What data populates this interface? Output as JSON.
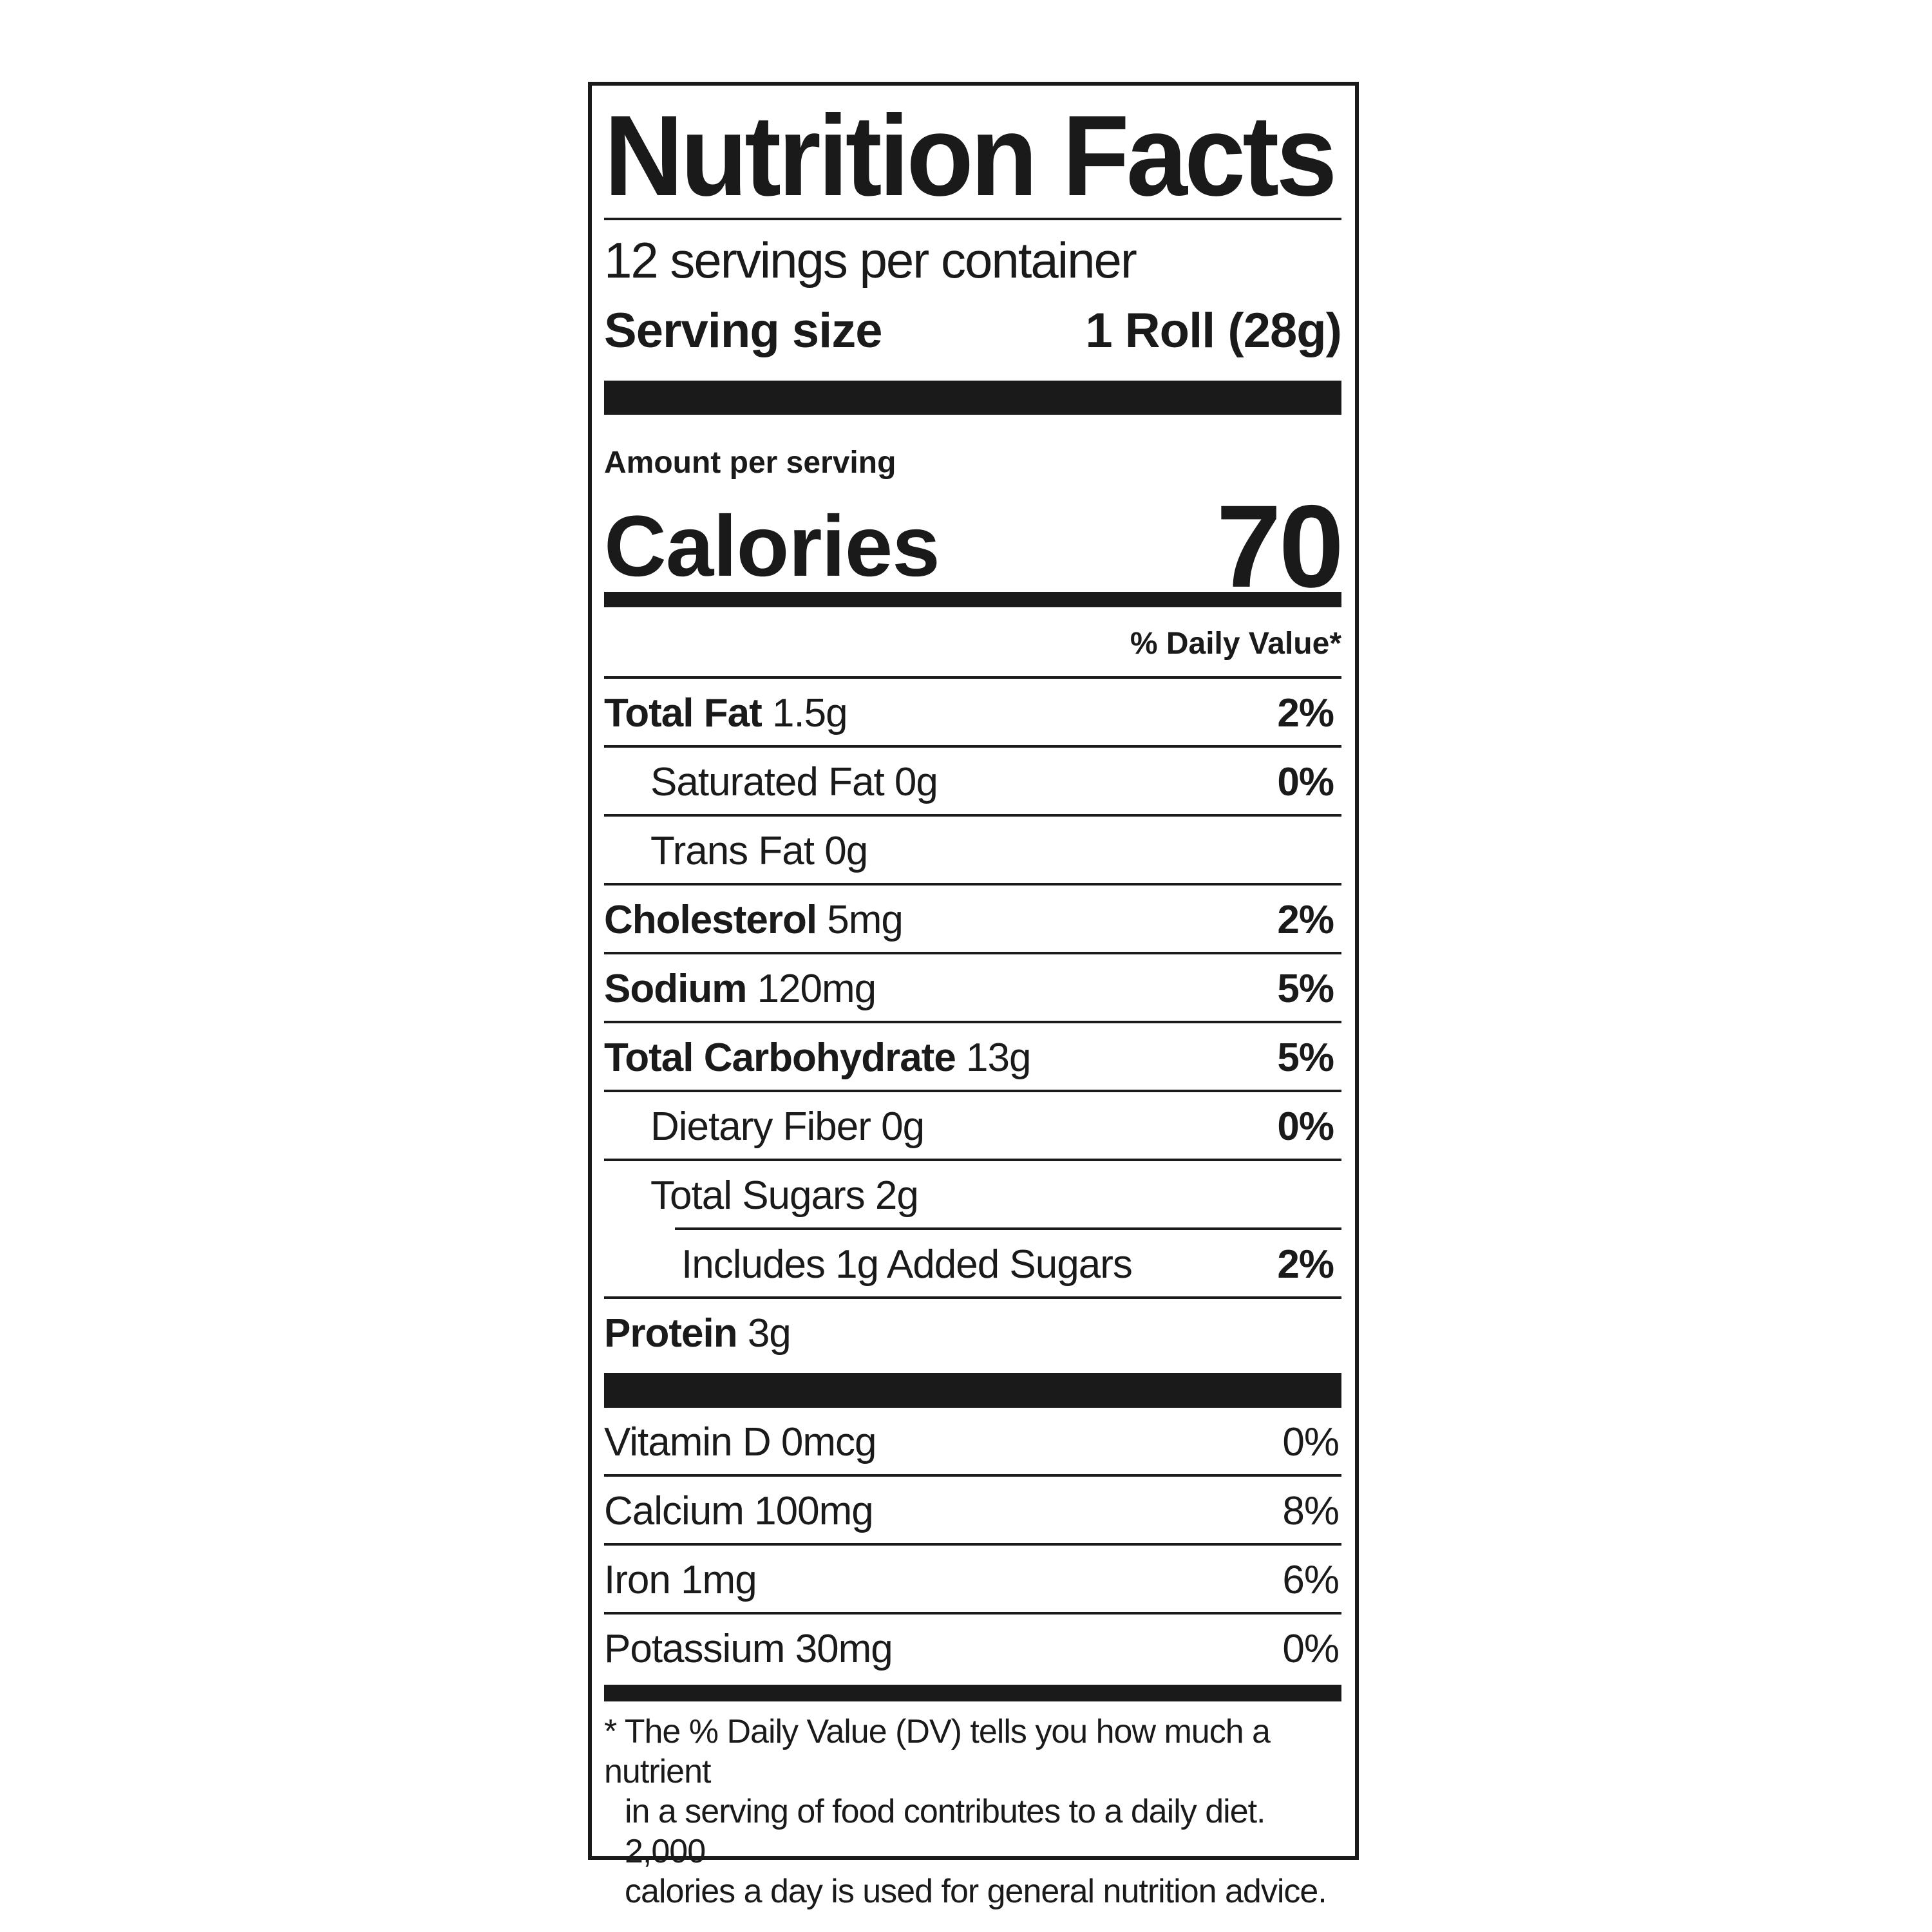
{
  "title": "Nutrition Facts",
  "servings_per_container": "12 servings per container",
  "serving_size": {
    "label": "Serving size",
    "value": "1 Roll (28g)"
  },
  "amount_per_serving": "Amount per serving",
  "calories": {
    "label": "Calories",
    "value": "70"
  },
  "daily_value_header": "% Daily Value*",
  "nutrients": [
    {
      "name": "Total Fat",
      "amount": "1.5g",
      "dv": "2%",
      "bold": true,
      "indent": 0
    },
    {
      "name": "Saturated Fat",
      "amount": "0g",
      "dv": "0%",
      "bold": false,
      "indent": 1
    },
    {
      "name": "Trans Fat",
      "amount": "0g",
      "dv": "",
      "bold": false,
      "indent": 1
    },
    {
      "name": "Cholesterol",
      "amount": "5mg",
      "dv": "2%",
      "bold": true,
      "indent": 0
    },
    {
      "name": "Sodium",
      "amount": "120mg",
      "dv": "5%",
      "bold": true,
      "indent": 0
    },
    {
      "name": "Total Carbohydrate",
      "amount": "13g",
      "dv": "5%",
      "bold": true,
      "indent": 0
    },
    {
      "name": "Dietary Fiber",
      "amount": "0g",
      "dv": "0%",
      "bold": false,
      "indent": 1
    },
    {
      "name": "Total Sugars",
      "amount": "2g",
      "dv": "",
      "bold": false,
      "indent": 1
    },
    {
      "name": "Includes 1g Added Sugars",
      "amount": "",
      "dv": "2%",
      "bold": false,
      "indent": 2
    },
    {
      "name": "Protein",
      "amount": "3g",
      "dv": "",
      "bold": true,
      "indent": 0
    }
  ],
  "vitamins": [
    {
      "name": "Vitamin D",
      "amount": "0mcg",
      "dv": "0%"
    },
    {
      "name": "Calcium",
      "amount": "100mg",
      "dv": "8%"
    },
    {
      "name": "Iron",
      "amount": "1mg",
      "dv": "6%"
    },
    {
      "name": "Potassium",
      "amount": "30mg",
      "dv": "0%"
    }
  ],
  "footnote": [
    "* The % Daily Value (DV) tells you how much a nutrient",
    "in a serving of food contributes to a daily diet. 2,000",
    "calories a day is used for general nutrition advice."
  ]
}
